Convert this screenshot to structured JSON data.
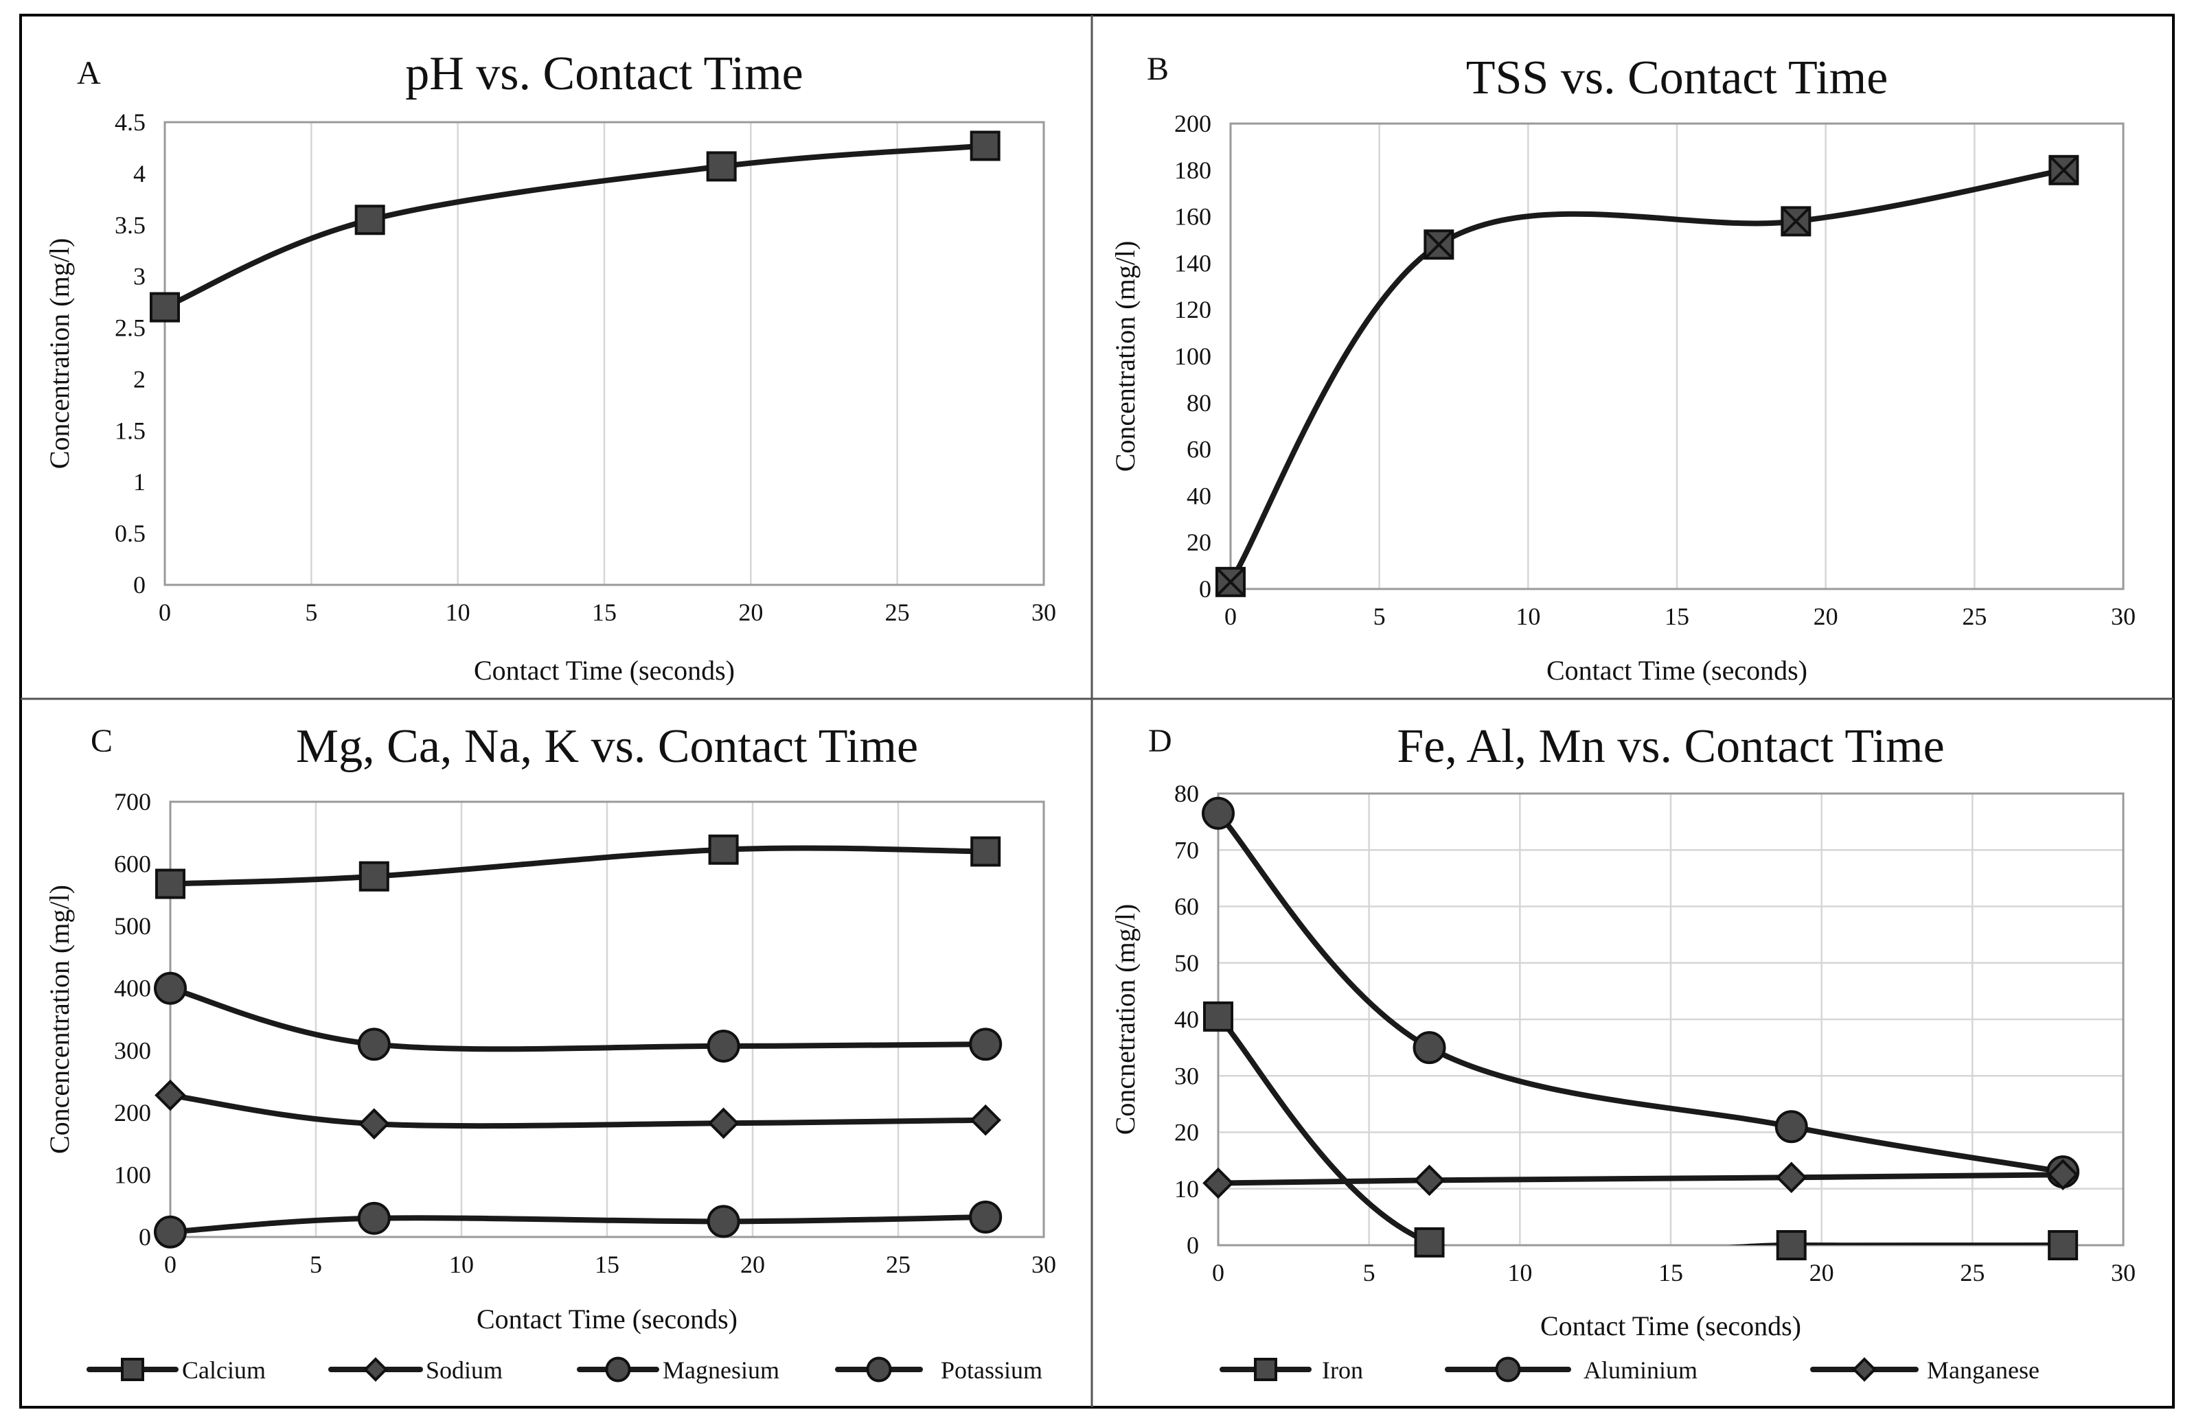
{
  "chart_data": [
    {
      "panel": "A",
      "type": "line",
      "title": "pH vs. Contact Time",
      "xlabel": "Contact Time (seconds)",
      "ylabel": "Concentration (mg/l)",
      "xlim": [
        0,
        30
      ],
      "ylim": [
        0,
        4.5
      ],
      "xticks": [
        "0",
        "5",
        "10",
        "15",
        "20",
        "25",
        "30"
      ],
      "yticks": [
        "0",
        "0.5",
        "1",
        "1.5",
        "2",
        "2.5",
        "3",
        "3.5",
        "4",
        "4.5"
      ],
      "grid": "vertical",
      "legend": null,
      "series": [
        {
          "name": "pH",
          "marker": "square",
          "x": [
            0,
            7,
            19,
            28
          ],
          "y": [
            2.7,
            3.55,
            4.07,
            4.27
          ]
        }
      ]
    },
    {
      "panel": "B",
      "type": "line",
      "title": "TSS vs. Contact Time",
      "xlabel": "Contact Time (seconds)",
      "ylabel": "Concentration (mg/l)",
      "xlim": [
        0,
        30
      ],
      "ylim": [
        0,
        200
      ],
      "xticks": [
        "0",
        "5",
        "10",
        "15",
        "20",
        "25",
        "30"
      ],
      "yticks": [
        "0",
        "20",
        "40",
        "60",
        "80",
        "100",
        "120",
        "140",
        "160",
        "180",
        "200"
      ],
      "grid": "vertical",
      "legend": null,
      "series": [
        {
          "name": "TSS",
          "marker": "square-x",
          "x": [
            0,
            7,
            19,
            28
          ],
          "y": [
            3,
            148,
            158,
            180
          ]
        }
      ]
    },
    {
      "panel": "C",
      "type": "line",
      "title": "Mg, Ca, Na, K vs. Contact Time",
      "xlabel": "Contact Time (seconds)",
      "ylabel": "Concencentration  (mg/l)",
      "xlim": [
        0,
        30
      ],
      "ylim": [
        0,
        700
      ],
      "xticks": [
        "0",
        "5",
        "10",
        "15",
        "20",
        "25",
        "30"
      ],
      "yticks": [
        "0",
        "100",
        "200",
        "300",
        "400",
        "500",
        "600",
        "700"
      ],
      "grid": "vertical",
      "legend": "bottom",
      "series": [
        {
          "name": "Calcium",
          "marker": "square",
          "x": [
            0,
            7,
            19,
            28
          ],
          "y": [
            568,
            580,
            623,
            620
          ]
        },
        {
          "name": "Sodium",
          "marker": "diamond",
          "x": [
            0,
            7,
            19,
            28
          ],
          "y": [
            228,
            182,
            183,
            188
          ]
        },
        {
          "name": "Magnesium",
          "marker": "circle",
          "x": [
            0,
            7,
            19,
            28
          ],
          "y": [
            400,
            310,
            307,
            310
          ]
        },
        {
          "name": "Potassium",
          "marker": "circle",
          "x": [
            0,
            7,
            19,
            28
          ],
          "y": [
            8,
            30,
            25,
            32
          ]
        }
      ]
    },
    {
      "panel": "D",
      "type": "line",
      "title": "Fe, Al, Mn vs. Contact Time",
      "xlabel": "Contact Time (seconds)",
      "ylabel": "Concnetration (mg/l)",
      "xlim": [
        0,
        30
      ],
      "ylim": [
        0,
        80
      ],
      "xticks": [
        "0",
        "5",
        "10",
        "15",
        "20",
        "25",
        "30"
      ],
      "yticks": [
        "0",
        "10",
        "20",
        "30",
        "40",
        "50",
        "60",
        "70",
        "80"
      ],
      "grid": "both",
      "legend": "bottom",
      "series": [
        {
          "name": "Iron",
          "marker": "square",
          "x": [
            0,
            7,
            19,
            28
          ],
          "y": [
            40.5,
            0.5,
            0,
            0
          ]
        },
        {
          "name": "Aluminium",
          "marker": "circle",
          "x": [
            0,
            7,
            19,
            28
          ],
          "y": [
            76.5,
            35,
            21,
            13
          ]
        },
        {
          "name": "Manganese",
          "marker": "diamond",
          "x": [
            0,
            7,
            19,
            28
          ],
          "y": [
            11,
            11.5,
            12,
            12.5
          ]
        }
      ]
    }
  ]
}
